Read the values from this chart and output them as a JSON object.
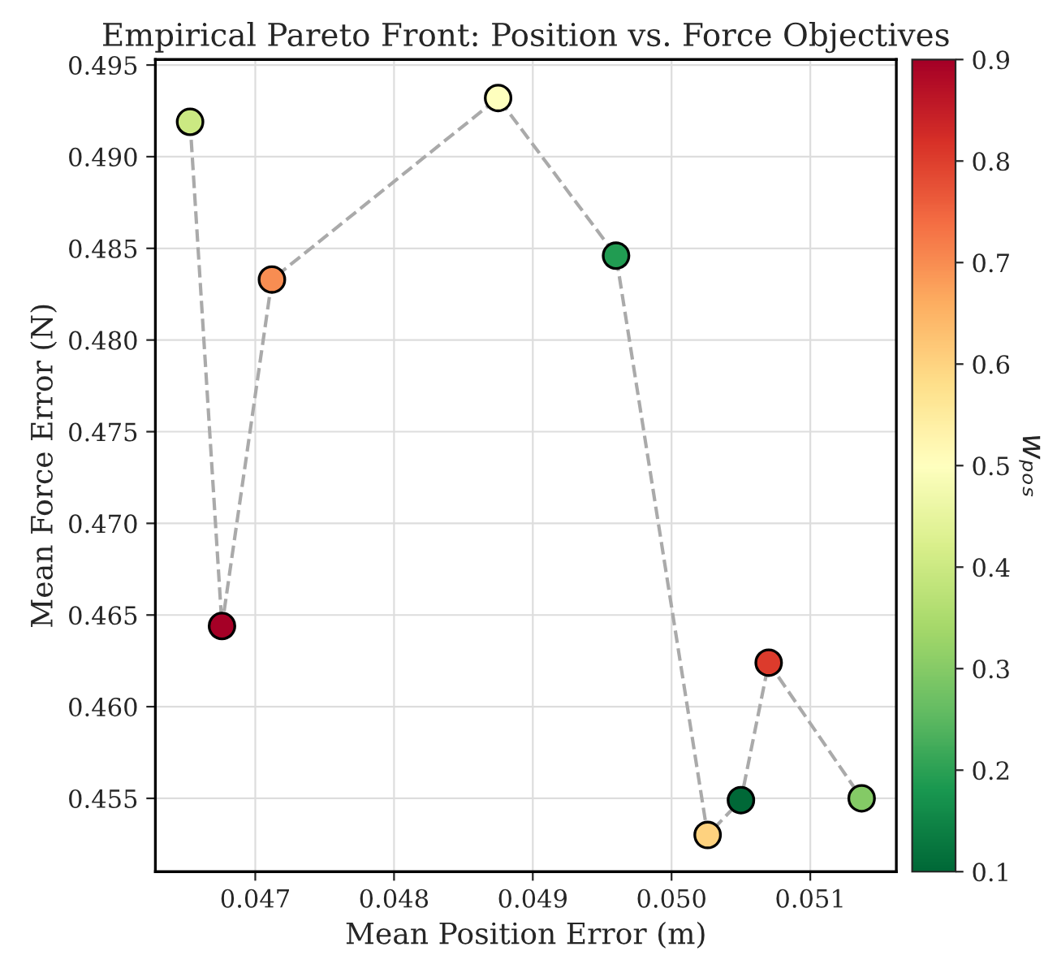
{
  "chart_data": {
    "type": "scatter",
    "title": "Empirical Pareto Front: Position vs. Force Objectives",
    "xlabel": "Mean Position Error (m)",
    "ylabel": "Mean Force Error (N)",
    "clabel": "wₚₒₛ",
    "series": [
      {
        "type": "line",
        "color": "#aaaaaa",
        "line_style": "dashed",
        "marker": "none",
        "x": [
          0.04653,
          0.04676,
          0.04712,
          0.04875,
          0.0496,
          0.05026,
          0.0505,
          0.0507,
          0.05137
        ],
        "values": [
          0.4919,
          0.4644,
          0.4833,
          0.4932,
          0.4846,
          0.453,
          0.4549,
          0.4624,
          0.455
        ]
      },
      {
        "marker": "circle",
        "x": [
          0.04653,
          0.04676,
          0.04712,
          0.04875,
          0.0496,
          0.05026,
          0.0505,
          0.0507,
          0.05137
        ],
        "values": [
          0.4919,
          0.4644,
          0.4833,
          0.4932,
          0.4846,
          0.453,
          0.4549,
          0.4624,
          0.455
        ],
        "colors": [
          "#cbe982",
          "#a50026",
          "#f88d52",
          "#feffbe",
          "#219c52",
          "#fed27f",
          "#006837",
          "#dc3b2c",
          "#84ca66"
        ]
      }
    ],
    "xlim": [
      0.04628,
      0.05162
    ],
    "ylim": [
      0.451,
      0.4953
    ],
    "xticks": [
      {
        "value": 0.047,
        "label": "0.047"
      },
      {
        "value": 0.048,
        "label": "0.048"
      },
      {
        "value": 0.049,
        "label": "0.049"
      },
      {
        "value": 0.05,
        "label": "0.050"
      },
      {
        "value": 0.051,
        "label": "0.051"
      }
    ],
    "yticks": [
      {
        "value": 0.455,
        "label": "0.455"
      },
      {
        "value": 0.46,
        "label": "0.460"
      },
      {
        "value": 0.465,
        "label": "0.465"
      },
      {
        "value": 0.47,
        "label": "0.470"
      },
      {
        "value": 0.475,
        "label": "0.475"
      },
      {
        "value": 0.48,
        "label": "0.480"
      },
      {
        "value": 0.485,
        "label": "0.485"
      },
      {
        "value": 0.49,
        "label": "0.490"
      },
      {
        "value": 0.495,
        "label": "0.495"
      }
    ],
    "clim": [
      0.1,
      0.9
    ],
    "cticks": [
      0.1,
      0.2,
      0.3,
      0.4,
      0.5,
      0.6,
      0.7,
      0.8,
      0.9
    ],
    "grid": true
  }
}
